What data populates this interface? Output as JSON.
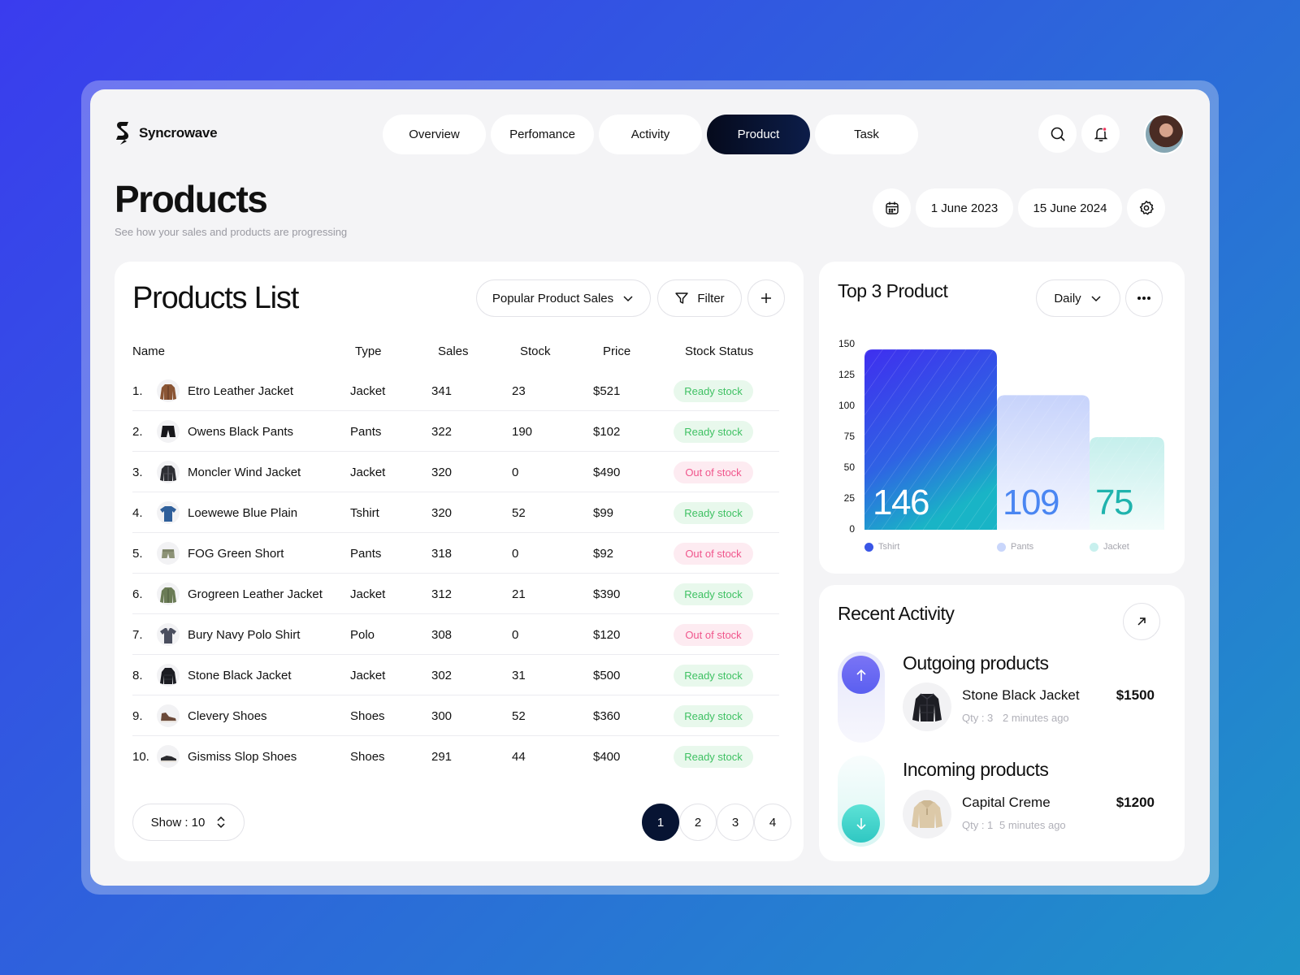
{
  "app": {
    "name": "Syncrowave"
  },
  "nav": {
    "tabs": [
      {
        "label": "Overview"
      },
      {
        "label": "Perfomance"
      },
      {
        "label": "Activity"
      },
      {
        "label": "Product",
        "active": true
      },
      {
        "label": "Task"
      }
    ]
  },
  "header_icons": [
    "search-icon",
    "bell-icon",
    "avatar"
  ],
  "page": {
    "title": "Products",
    "subtitle": "See how your sales and products are progressing"
  },
  "date_range": {
    "icon": "calendar-icon",
    "start": "1 June 2023",
    "end": "15 June 2024",
    "settings_icon": "gear-icon"
  },
  "products_list": {
    "title": "Products List",
    "sort_label": "Popular Product Sales",
    "filter_label": "Filter",
    "add_icon": "plus-icon",
    "columns": [
      "Name",
      "Type",
      "Sales",
      "Stock",
      "Price",
      "Stock Status"
    ],
    "rows": [
      {
        "num": "1.",
        "name": "Etro Leather Jacket",
        "type": "Jacket",
        "sales": "341",
        "stock": "23",
        "price": "$521",
        "status": "Ready stock",
        "status_kind": "ready",
        "icon": "leather-jacket-icon"
      },
      {
        "num": "2.",
        "name": "Owens Black Pants",
        "type": "Pants",
        "sales": "322",
        "stock": "190",
        "price": "$102",
        "status": "Ready stock",
        "status_kind": "ready",
        "icon": "black-pants-icon"
      },
      {
        "num": "3.",
        "name": "Moncler Wind Jacket",
        "type": "Jacket",
        "sales": "320",
        "stock": "0",
        "price": "$490",
        "status": "Out of stock",
        "status_kind": "out",
        "icon": "wind-jacket-icon"
      },
      {
        "num": "4.",
        "name": "Loewewe Blue Plain",
        "type": "Tshirt",
        "sales": "320",
        "stock": "52",
        "price": "$99",
        "status": "Ready stock",
        "status_kind": "ready",
        "icon": "blue-tshirt-icon"
      },
      {
        "num": "5.",
        "name": "FOG Green Short",
        "type": "Pants",
        "sales": "318",
        "stock": "0",
        "price": "$92",
        "status": "Out of stock",
        "status_kind": "out",
        "icon": "green-short-icon"
      },
      {
        "num": "6.",
        "name": "Grogreen Leather Jacket",
        "type": "Jacket",
        "sales": "312",
        "stock": "21",
        "price": "$390",
        "status": "Ready stock",
        "status_kind": "ready",
        "icon": "green-jacket-icon"
      },
      {
        "num": "7.",
        "name": "Bury Navy Polo Shirt",
        "type": "Polo",
        "sales": "308",
        "stock": "0",
        "price": "$120",
        "status": "Out of stock",
        "status_kind": "out",
        "icon": "polo-shirt-icon"
      },
      {
        "num": "8.",
        "name": "Stone Black Jacket",
        "type": "Jacket",
        "sales": "302",
        "stock": "31",
        "price": "$500",
        "status": "Ready stock",
        "status_kind": "ready",
        "icon": "black-jacket-icon"
      },
      {
        "num": "9.",
        "name": "Clevery Shoes",
        "type": "Shoes",
        "sales": "300",
        "stock": "52",
        "price": "$360",
        "status": "Ready stock",
        "status_kind": "ready",
        "icon": "shoe-icon"
      },
      {
        "num": "10.",
        "name": "Gismiss Slop Shoes",
        "type": "Shoes",
        "sales": "291",
        "stock": "44",
        "price": "$400",
        "status": "Ready stock",
        "status_kind": "ready",
        "icon": "slip-shoe-icon"
      }
    ],
    "show_label": "Show : 10",
    "pages": [
      "1",
      "2",
      "3",
      "4"
    ],
    "active_page": "1"
  },
  "top3": {
    "title": "Top 3 Product",
    "period": "Daily",
    "more_icon": "more-icon",
    "chart_data": {
      "type": "bar",
      "categories": [
        "Tshirt",
        "Pants",
        "Jacket"
      ],
      "values": [
        146,
        109,
        75
      ],
      "ylim": [
        0,
        150
      ],
      "yticks": [
        "150",
        "125",
        "100",
        "75",
        "50",
        "25",
        "0"
      ],
      "colors": [
        "#3d39ec",
        "#c9d6fb",
        "#c8f0ee"
      ],
      "value_colors": [
        "#ffffff",
        "#4a86f2",
        "#1fb3ad"
      ],
      "legend_placement": "bottom"
    }
  },
  "recent_activity": {
    "title": "Recent Activity",
    "open_icon": "arrow-up-right-icon",
    "items": [
      {
        "section": "Outgoing products",
        "name": "Stone Black Jacket",
        "qty": "Qty : 3",
        "time": "2 minutes ago",
        "price": "$1500",
        "direction_icon": "arrow-up-icon",
        "thumb_icon": "puffer-jacket-icon"
      },
      {
        "section": "Incoming products",
        "name": "Capital Creme",
        "qty": "Qty : 1",
        "time": "5 minutes ago",
        "price": "$1200",
        "direction_icon": "arrow-down-icon",
        "thumb_icon": "fleece-jacket-icon"
      }
    ]
  }
}
